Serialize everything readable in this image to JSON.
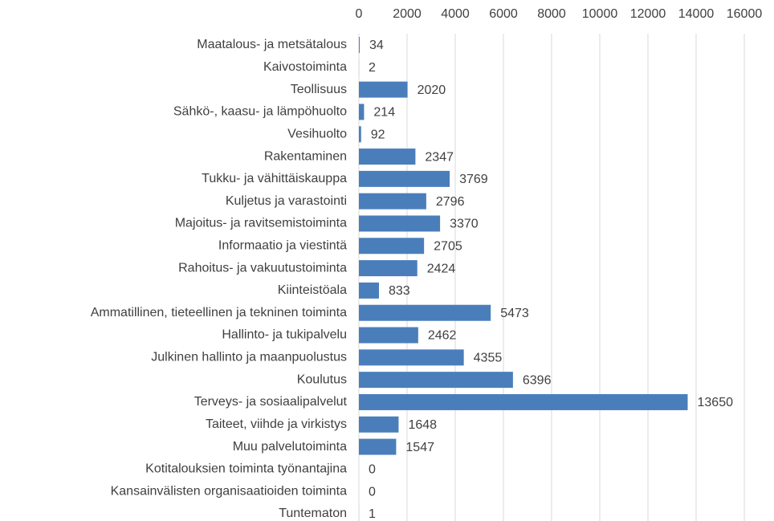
{
  "chart_data": {
    "type": "barh",
    "categories": [
      "Maatalous- ja metsätalous",
      "Kaivostoiminta",
      "Teollisuus",
      "Sähkö-, kaasu- ja lämpöhuolto",
      "Vesihuolto",
      "Rakentaminen",
      "Tukku- ja vähittäiskauppa",
      "Kuljetus ja varastointi",
      "Majoitus- ja ravitsemistoiminta",
      "Informaatio ja viestintä",
      "Rahoitus- ja vakuutustoiminta",
      "Kiinteistöala",
      "Ammatillinen, tieteellinen ja tekninen toiminta",
      "Hallinto- ja tukipalvelu",
      "Julkinen hallinto ja maanpuolustus",
      "Koulutus",
      "Terveys- ja sosiaalipalvelut",
      "Taiteet, viihde ja virkistys",
      "Muu palvelutoiminta",
      "Kotitalouksien toiminta työnantajina",
      "Kansainvälisten organisaatioiden toiminta",
      "Tuntematon"
    ],
    "values": [
      34,
      2,
      2020,
      214,
      92,
      2347,
      3769,
      2796,
      3370,
      2705,
      2424,
      833,
      5473,
      2462,
      4355,
      6396,
      13650,
      1648,
      1547,
      0,
      0,
      1
    ],
    "color": "#4a7ebb",
    "xlim": [
      0,
      16000
    ],
    "xticks": [
      0,
      2000,
      4000,
      6000,
      8000,
      10000,
      12000,
      14000,
      16000
    ],
    "grid": true,
    "data_labels": true
  }
}
